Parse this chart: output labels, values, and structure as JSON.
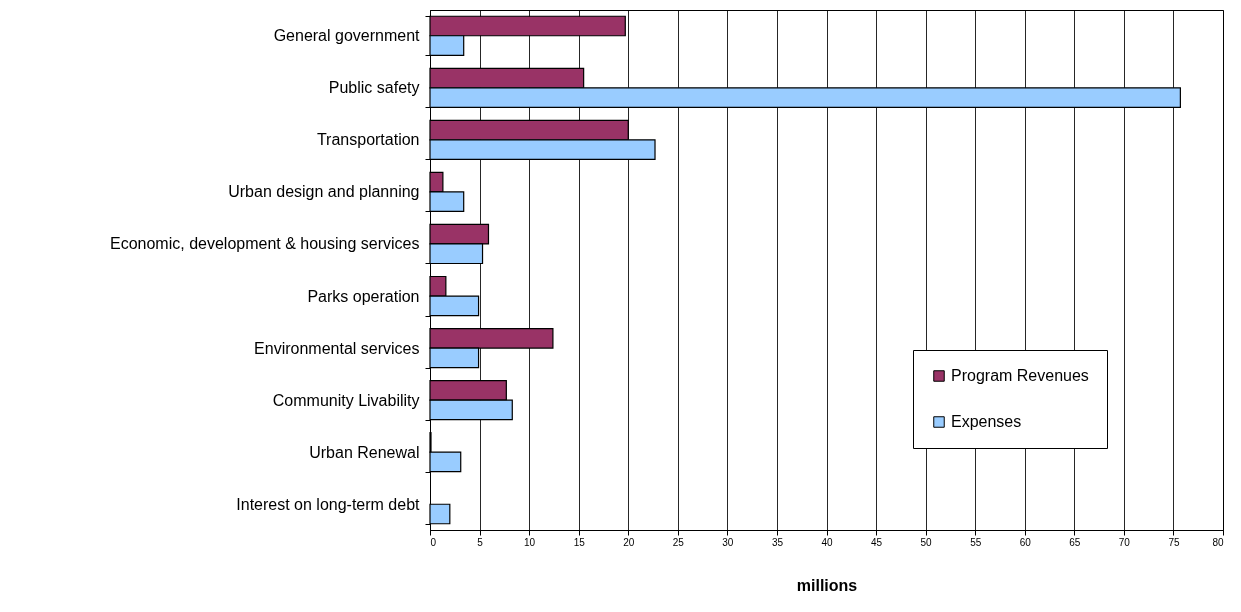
{
  "chart_data": {
    "type": "bar",
    "orientation": "horizontal",
    "xlabel": "millions",
    "categories": [
      "General government",
      "Public safety",
      "Transportation",
      "Urban design and planning",
      "Economic, development & housing services",
      "Parks operation",
      "Environmental services",
      "Community Livability",
      "Urban Renewal",
      "Interest on long-term debt"
    ],
    "series": [
      {
        "name": "Program Revenues",
        "color": "#993366",
        "values": [
          19.7,
          15.5,
          20,
          1.3,
          5.9,
          1.6,
          12.4,
          7.7,
          0.1,
          null
        ]
      },
      {
        "name": "Expenses",
        "color": "#99ccff",
        "values": [
          3.4,
          75.7,
          22.7,
          3.4,
          5.3,
          4.9,
          4.9,
          8.3,
          3.1,
          2.0
        ]
      }
    ],
    "xlim": [
      0,
      80
    ],
    "xticks": [
      0,
      5,
      10,
      15,
      20,
      25,
      30,
      35,
      40,
      45,
      50,
      55,
      60,
      65,
      70,
      75,
      80
    ],
    "grid": "x",
    "legend": "bottom right"
  }
}
